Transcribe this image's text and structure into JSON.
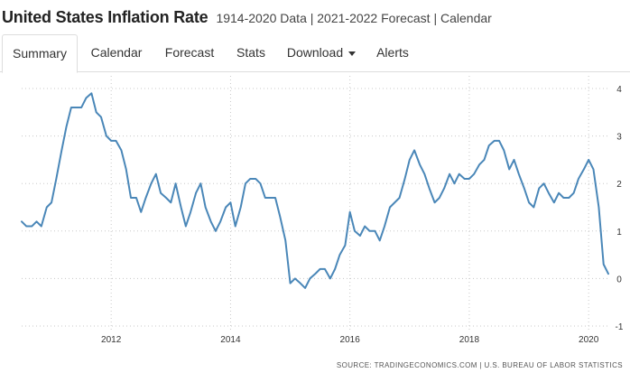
{
  "header": {
    "title": "United States Inflation Rate",
    "subtitle": "1914-2020 Data | 2021-2022 Forecast | Calendar"
  },
  "tabs": [
    {
      "label": "Summary",
      "active": true
    },
    {
      "label": "Calendar",
      "active": false
    },
    {
      "label": "Forecast",
      "active": false
    },
    {
      "label": "Stats",
      "active": false
    },
    {
      "label": "Download",
      "active": false
    },
    {
      "label": "Alerts",
      "active": false
    }
  ],
  "colors": {
    "line": "#4a87b8",
    "grid": "#c8c8c8"
  },
  "chart_data": {
    "type": "line",
    "title": "United States Inflation Rate",
    "xlabel": "",
    "ylabel": "",
    "x_range": [
      2010.5,
      2020.33
    ],
    "ylim": [
      -1,
      4
    ],
    "y_ticks": [
      "-1",
      "0",
      "1",
      "2",
      "3",
      "4"
    ],
    "x_ticks": [
      {
        "label": "2012",
        "value": 2012
      },
      {
        "label": "2014",
        "value": 2014
      },
      {
        "label": "2016",
        "value": 2016
      },
      {
        "label": "2018",
        "value": 2018
      },
      {
        "label": "2020",
        "value": 2020
      }
    ],
    "grid": true,
    "series": [
      {
        "name": "Inflation Rate",
        "x": [
          2010.5,
          2010.58,
          2010.67,
          2010.75,
          2010.83,
          2010.92,
          2011.0,
          2011.08,
          2011.17,
          2011.25,
          2011.33,
          2011.42,
          2011.5,
          2011.58,
          2011.67,
          2011.75,
          2011.83,
          2011.92,
          2012.0,
          2012.08,
          2012.17,
          2012.25,
          2012.33,
          2012.42,
          2012.5,
          2012.58,
          2012.67,
          2012.75,
          2012.83,
          2012.92,
          2013.0,
          2013.08,
          2013.17,
          2013.25,
          2013.33,
          2013.42,
          2013.5,
          2013.58,
          2013.67,
          2013.75,
          2013.83,
          2013.92,
          2014.0,
          2014.08,
          2014.17,
          2014.25,
          2014.33,
          2014.42,
          2014.5,
          2014.58,
          2014.67,
          2014.75,
          2014.83,
          2014.92,
          2015.0,
          2015.08,
          2015.17,
          2015.25,
          2015.33,
          2015.42,
          2015.5,
          2015.58,
          2015.67,
          2015.75,
          2015.83,
          2015.92,
          2016.0,
          2016.08,
          2016.17,
          2016.25,
          2016.33,
          2016.42,
          2016.5,
          2016.58,
          2016.67,
          2016.75,
          2016.83,
          2016.92,
          2017.0,
          2017.08,
          2017.17,
          2017.25,
          2017.33,
          2017.42,
          2017.5,
          2017.58,
          2017.67,
          2017.75,
          2017.83,
          2017.92,
          2018.0,
          2018.08,
          2018.17,
          2018.25,
          2018.33,
          2018.42,
          2018.5,
          2018.58,
          2018.67,
          2018.75,
          2018.83,
          2018.92,
          2019.0,
          2019.08,
          2019.17,
          2019.25,
          2019.33,
          2019.42,
          2019.5,
          2019.58,
          2019.67,
          2019.75,
          2019.83,
          2019.92,
          2020.0,
          2020.08,
          2020.17,
          2020.25,
          2020.33
        ],
        "values": [
          1.2,
          1.1,
          1.1,
          1.2,
          1.1,
          1.5,
          1.6,
          2.1,
          2.7,
          3.2,
          3.6,
          3.6,
          3.6,
          3.8,
          3.9,
          3.5,
          3.4,
          3.0,
          2.9,
          2.9,
          2.7,
          2.3,
          1.7,
          1.7,
          1.4,
          1.7,
          2.0,
          2.2,
          1.8,
          1.7,
          1.6,
          2.0,
          1.5,
          1.1,
          1.4,
          1.8,
          2.0,
          1.5,
          1.2,
          1.0,
          1.2,
          1.5,
          1.6,
          1.1,
          1.5,
          2.0,
          2.1,
          2.1,
          2.0,
          1.7,
          1.7,
          1.7,
          1.3,
          0.8,
          -0.1,
          0.0,
          -0.1,
          -0.2,
          0.0,
          0.1,
          0.2,
          0.2,
          0.0,
          0.2,
          0.5,
          0.7,
          1.4,
          1.0,
          0.9,
          1.1,
          1.0,
          1.0,
          0.8,
          1.1,
          1.5,
          1.6,
          1.7,
          2.1,
          2.5,
          2.7,
          2.4,
          2.2,
          1.9,
          1.6,
          1.7,
          1.9,
          2.2,
          2.0,
          2.2,
          2.1,
          2.1,
          2.2,
          2.4,
          2.5,
          2.8,
          2.9,
          2.9,
          2.7,
          2.3,
          2.5,
          2.2,
          1.9,
          1.6,
          1.5,
          1.9,
          2.0,
          1.8,
          1.6,
          1.8,
          1.7,
          1.7,
          1.8,
          2.1,
          2.3,
          2.5,
          2.3,
          1.5,
          0.3,
          0.1
        ]
      }
    ]
  },
  "source": {
    "text": "SOURCE: TRADINGECONOMICS.COM | U.S. BUREAU OF LABOR STATISTICS"
  }
}
